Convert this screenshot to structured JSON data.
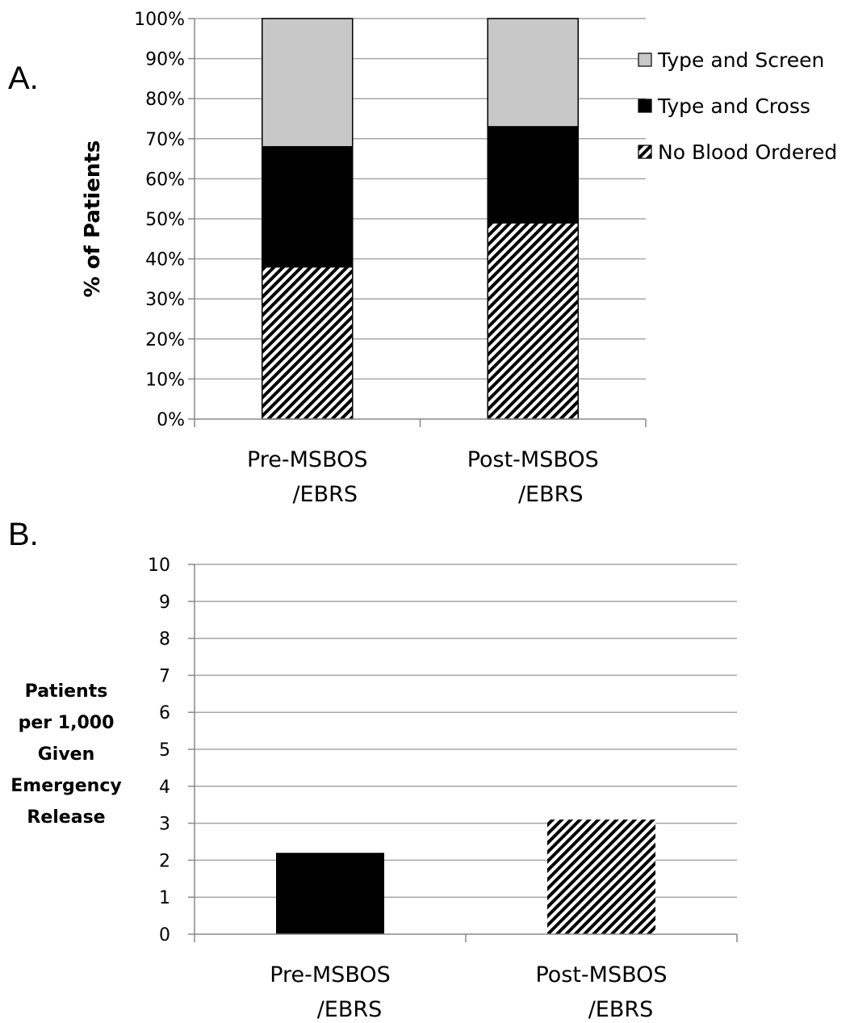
{
  "chart_data": [
    {
      "panel": "A.",
      "type": "bar",
      "stacked": true,
      "categories": [
        "Pre-MSBOS\n/EBRS",
        "Post-MSBOS\n/EBRS"
      ],
      "series": [
        {
          "name": "No Blood Ordered",
          "values": [
            38,
            49
          ],
          "fill": "hatch"
        },
        {
          "name": "Type and Cross",
          "values": [
            30,
            24
          ],
          "fill": "#000000"
        },
        {
          "name": "Type and Screen",
          "values": [
            32,
            27
          ],
          "fill": "#c8c8c8"
        }
      ],
      "ylabel": "% of Patients",
      "ylim": [
        0,
        100
      ],
      "yticks": [
        "0%",
        "10%",
        "20%",
        "30%",
        "40%",
        "50%",
        "60%",
        "70%",
        "80%",
        "90%",
        "100%"
      ],
      "legend": {
        "placement": "right",
        "order": [
          "Type and Screen",
          "Type and Cross",
          "No Blood Ordered"
        ]
      },
      "grid": true
    },
    {
      "panel": "B.",
      "type": "bar",
      "categories": [
        "Pre-MSBOS\n/EBRS",
        "Post-MSBOS\n/EBRS"
      ],
      "values": [
        2.2,
        3.1
      ],
      "fills": [
        "#000000",
        "hatch"
      ],
      "ylabel": "Patients\nper 1,000\nGiven\nEmergency\nRelease",
      "ylim": [
        0,
        10
      ],
      "yticks": [
        "0",
        "1",
        "2",
        "3",
        "4",
        "5",
        "6",
        "7",
        "8",
        "9",
        "10"
      ],
      "grid": true
    }
  ]
}
